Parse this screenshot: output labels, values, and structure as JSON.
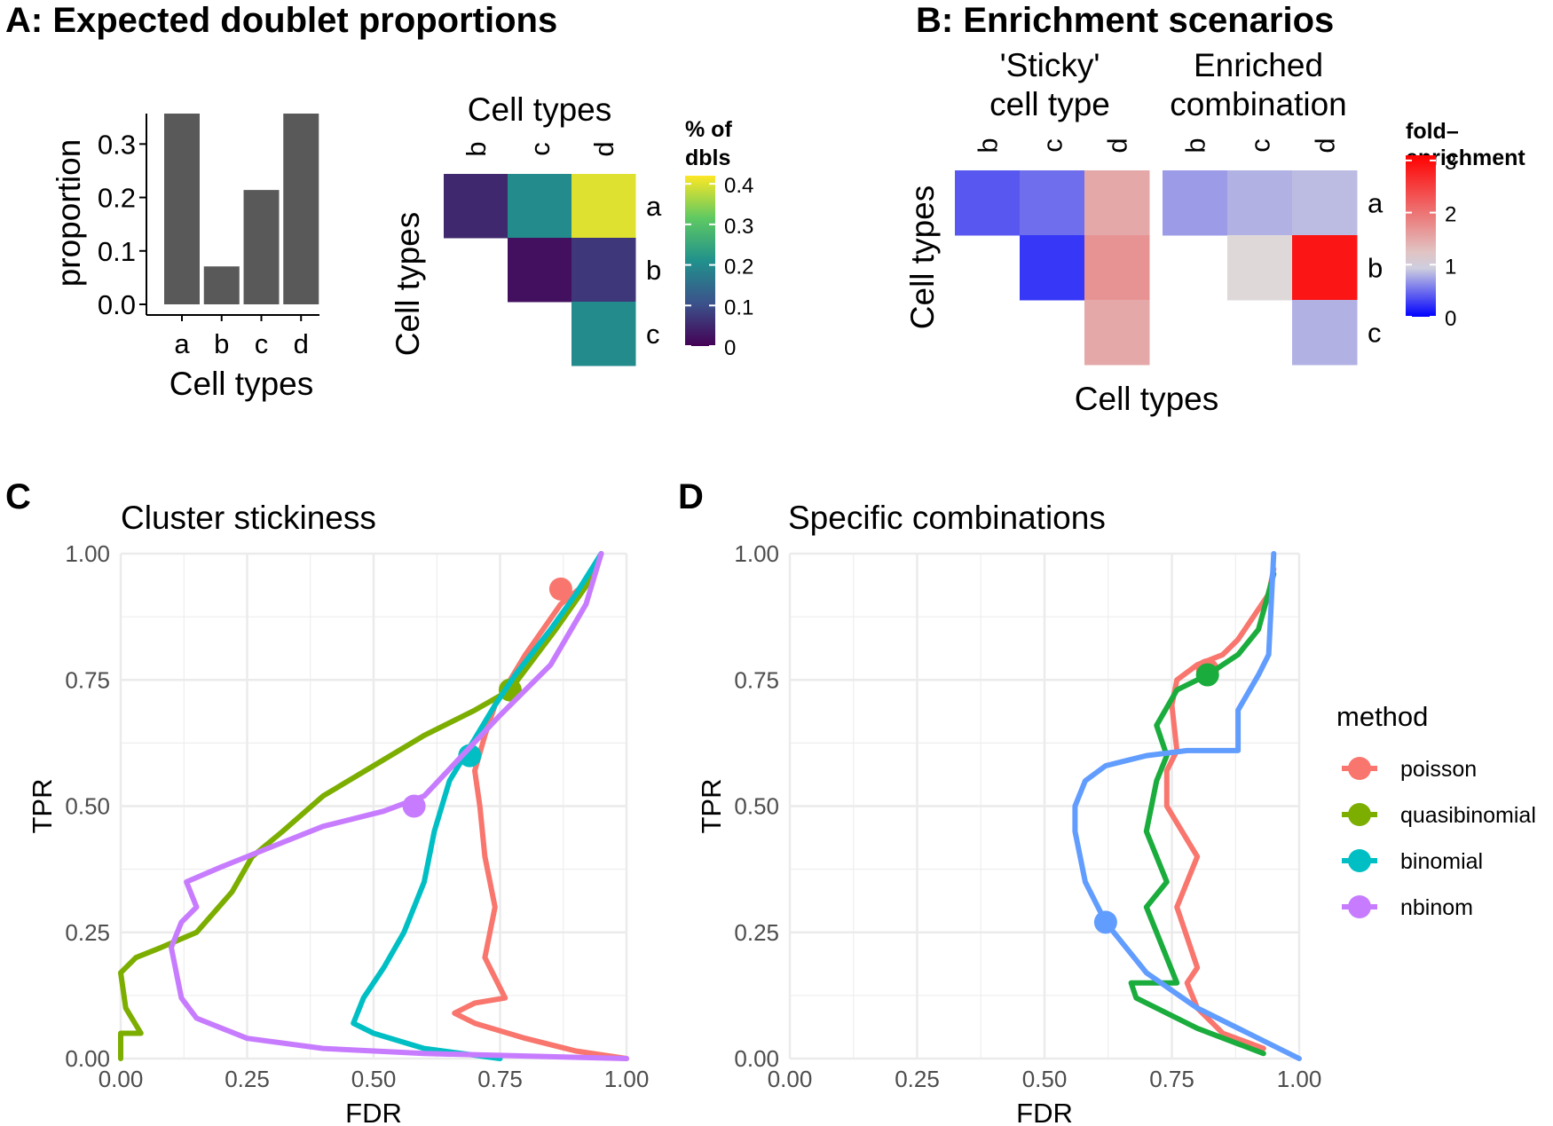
{
  "panels": {
    "A": {
      "title": "A: Expected doublet proportions",
      "bar": {
        "ylabel": "proportion",
        "xlabel": "Cell types",
        "yticks": [
          "0.0",
          "0.1",
          "0.2",
          "0.3"
        ],
        "ytick_values": [
          0,
          0.1,
          0.2,
          0.3
        ]
      },
      "heatmap": {
        "top_label": "Cell types",
        "left_label": "Cell types",
        "col_labels": [
          "b",
          "c",
          "d"
        ],
        "row_labels": [
          "a",
          "b",
          "c"
        ],
        "legend_title_1": "% of",
        "legend_title_2": "dbls",
        "legend_ticks": [
          "0",
          "0.1",
          "0.2",
          "0.3",
          "0.4"
        ],
        "legend_tick_values": [
          0,
          0.1,
          0.2,
          0.3,
          0.4
        ],
        "scale_max": 0.42,
        "palette": [
          "#440154",
          "#3b528b",
          "#21918c",
          "#5ec962",
          "#fde725"
        ]
      }
    },
    "B": {
      "title": "B: Enrichment scenarios",
      "sub1_line1": "'Sticky'",
      "sub1_line2": "cell type",
      "sub2_line1": "Enriched",
      "sub2_line2": "combination",
      "col_labels": [
        "b",
        "c",
        "d"
      ],
      "row_labels": [
        "a",
        "b",
        "c"
      ],
      "left_label": "Cell types",
      "bottom_label": "Cell types",
      "legend_title_1": "fold–",
      "legend_title_2": "enrichment",
      "legend_ticks": [
        "0",
        "1",
        "2",
        "3"
      ],
      "legend_tick_values": [
        0,
        1,
        2,
        3
      ],
      "palette": {
        "low": "#0000ff",
        "mid": "#dddddd",
        "high": "#ff0000"
      }
    },
    "C": {
      "label": "C",
      "title": "Cluster stickiness"
    },
    "D": {
      "label": "D",
      "title": "Specific combinations"
    }
  },
  "roc_axes": {
    "xlabel": "FDR",
    "ylabel": "TPR",
    "ticks": [
      "0.00",
      "0.25",
      "0.50",
      "0.75",
      "1.00"
    ],
    "tick_values": [
      0,
      0.25,
      0.5,
      0.75,
      1.0
    ]
  },
  "legend": {
    "title": "method",
    "items": [
      {
        "name": "poisson",
        "color": "#f8766d"
      },
      {
        "name": "quasibinomial",
        "color": "#7cae00"
      },
      {
        "name": "binomial",
        "color": "#00bfc4"
      },
      {
        "name": "nbinom",
        "color": "#c77cff"
      }
    ]
  },
  "colors": {
    "bar": "#595959",
    "grid": "#ebebeb",
    "quasibinomial_D": "#1aac3c",
    "nbinom_D": "#619cff"
  },
  "chart_data": [
    {
      "type": "bar",
      "categories": [
        "a",
        "b",
        "c",
        "d"
      ],
      "values": [
        0.357,
        0.071,
        0.214,
        0.357
      ],
      "ylabel": "proportion",
      "xlabel": "Cell types",
      "ylim": [
        0,
        0.357
      ]
    },
    {
      "type": "heatmap",
      "rows": [
        "a",
        "b",
        "c"
      ],
      "cols": [
        "b",
        "c",
        "d"
      ],
      "cells": [
        {
          "row": "a",
          "col": "b",
          "value": 0.05
        },
        {
          "row": "a",
          "col": "c",
          "value": 0.2
        },
        {
          "row": "a",
          "col": "d",
          "value": 0.4
        },
        {
          "row": "b",
          "col": "c",
          "value": 0.02
        },
        {
          "row": "b",
          "col": "d",
          "value": 0.07
        },
        {
          "row": "c",
          "col": "d",
          "value": 0.2
        }
      ],
      "legend_title": "% of dbls"
    },
    {
      "type": "heatmap",
      "subtitle": "'Sticky' cell type",
      "rows": [
        "a",
        "b",
        "c"
      ],
      "cols": [
        "b",
        "c",
        "d"
      ],
      "cells": [
        {
          "row": "a",
          "col": "b",
          "value": 0.4
        },
        {
          "row": "a",
          "col": "c",
          "value": 0.5
        },
        {
          "row": "a",
          "col": "d",
          "value": 1.5
        },
        {
          "row": "b",
          "col": "c",
          "value": 0.25
        },
        {
          "row": "b",
          "col": "d",
          "value": 1.7
        },
        {
          "row": "c",
          "col": "d",
          "value": 1.5
        }
      ]
    },
    {
      "type": "heatmap",
      "subtitle": "Enriched combination",
      "rows": [
        "a",
        "b",
        "c"
      ],
      "cols": [
        "b",
        "c",
        "d"
      ],
      "cells": [
        {
          "row": "a",
          "col": "b",
          "value": 0.7
        },
        {
          "row": "a",
          "col": "c",
          "value": 0.8
        },
        {
          "row": "a",
          "col": "d",
          "value": 0.85
        },
        {
          "row": "b",
          "col": "c",
          "value": 1.05
        },
        {
          "row": "b",
          "col": "d",
          "value": 2.9
        },
        {
          "row": "c",
          "col": "d",
          "value": 0.8
        }
      ]
    },
    {
      "type": "line",
      "title": "Cluster stickiness",
      "xlabel": "FDR",
      "ylabel": "TPR",
      "xlim": [
        0,
        1
      ],
      "ylim": [
        0,
        1
      ],
      "series": [
        {
          "name": "poisson",
          "x": [
            1.0,
            0.9,
            0.8,
            0.7,
            0.66,
            0.68,
            0.7,
            0.76,
            0.72,
            0.74,
            0.72,
            0.71,
            0.7,
            0.72,
            0.74,
            0.8,
            0.87,
            0.93,
            0.95
          ],
          "y": [
            0.0,
            0.015,
            0.04,
            0.07,
            0.09,
            0.1,
            0.11,
            0.12,
            0.2,
            0.3,
            0.4,
            0.5,
            0.57,
            0.64,
            0.7,
            0.8,
            0.9,
            0.95,
            1.0
          ],
          "point": [
            0.87,
            0.93
          ]
        },
        {
          "name": "quasibinomial",
          "x": [
            0.0,
            0.0,
            0.02,
            0.04,
            0.01,
            0.0,
            0.03,
            0.08,
            0.15,
            0.22,
            0.26,
            0.32,
            0.4,
            0.5,
            0.6,
            0.7,
            0.77,
            0.86,
            0.93,
            0.95
          ],
          "y": [
            0.0,
            0.05,
            0.05,
            0.05,
            0.1,
            0.17,
            0.2,
            0.22,
            0.25,
            0.33,
            0.4,
            0.45,
            0.52,
            0.58,
            0.64,
            0.69,
            0.73,
            0.85,
            0.95,
            1.0
          ],
          "point": [
            0.77,
            0.73
          ]
        },
        {
          "name": "binomial",
          "x": [
            0.75,
            0.6,
            0.5,
            0.46,
            0.48,
            0.52,
            0.56,
            0.6,
            0.62,
            0.65,
            0.68,
            0.74,
            0.78,
            0.85,
            0.9,
            0.95
          ],
          "y": [
            0.0,
            0.02,
            0.05,
            0.07,
            0.12,
            0.18,
            0.25,
            0.35,
            0.45,
            0.55,
            0.6,
            0.7,
            0.76,
            0.85,
            0.92,
            1.0
          ],
          "point": [
            0.69,
            0.6
          ]
        },
        {
          "name": "nbinom",
          "x": [
            1.0,
            0.6,
            0.4,
            0.25,
            0.15,
            0.12,
            0.1,
            0.12,
            0.15,
            0.13,
            0.2,
            0.3,
            0.4,
            0.52,
            0.6,
            0.75,
            0.85,
            0.92,
            0.95
          ],
          "y": [
            0.0,
            0.01,
            0.02,
            0.04,
            0.08,
            0.12,
            0.22,
            0.27,
            0.3,
            0.35,
            0.38,
            0.42,
            0.46,
            0.49,
            0.52,
            0.68,
            0.78,
            0.9,
            1.0
          ],
          "point": [
            0.58,
            0.5
          ]
        }
      ]
    },
    {
      "type": "line",
      "title": "Specific combinations",
      "xlabel": "FDR",
      "ylabel": "TPR",
      "xlim": [
        0,
        1
      ],
      "ylim": [
        0,
        1
      ],
      "series": [
        {
          "name": "poisson",
          "x": [
            0.93,
            0.85,
            0.8,
            0.78,
            0.8,
            0.76,
            0.8,
            0.74,
            0.74,
            0.76,
            0.75,
            0.76,
            0.8,
            0.85,
            0.88,
            0.94,
            0.95
          ],
          "y": [
            0.02,
            0.05,
            0.1,
            0.15,
            0.18,
            0.3,
            0.4,
            0.5,
            0.57,
            0.61,
            0.7,
            0.75,
            0.78,
            0.8,
            0.83,
            0.92,
            0.97
          ],
          "point": [
            0.82,
            0.77
          ]
        },
        {
          "name": "quasibinomial",
          "x": [
            0.93,
            0.8,
            0.68,
            0.67,
            0.7,
            0.76,
            0.7,
            0.74,
            0.7,
            0.72,
            0.74,
            0.72,
            0.76,
            0.82,
            0.88,
            0.92,
            0.95
          ],
          "y": [
            0.01,
            0.06,
            0.12,
            0.15,
            0.15,
            0.15,
            0.3,
            0.35,
            0.45,
            0.55,
            0.6,
            0.66,
            0.73,
            0.76,
            0.8,
            0.85,
            0.96
          ],
          "point": [
            0.82,
            0.76
          ]
        },
        {
          "name": "nbinom",
          "x": [
            1.0,
            0.9,
            0.8,
            0.7,
            0.62,
            0.58,
            0.56,
            0.56,
            0.58,
            0.62,
            0.7,
            0.78,
            0.88,
            0.88,
            0.92,
            0.94,
            0.95
          ],
          "y": [
            0.0,
            0.05,
            0.1,
            0.17,
            0.27,
            0.35,
            0.45,
            0.5,
            0.55,
            0.58,
            0.6,
            0.61,
            0.61,
            0.69,
            0.76,
            0.8,
            1.0
          ],
          "point": [
            0.62,
            0.27
          ]
        }
      ]
    }
  ]
}
